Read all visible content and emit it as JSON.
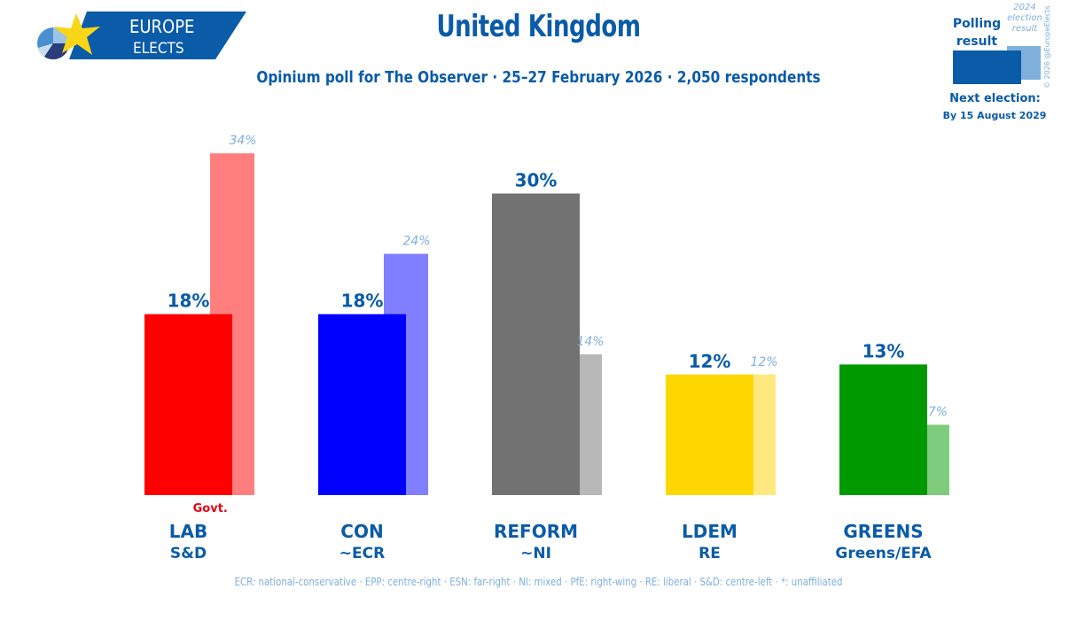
{
  "header": {
    "title": "United Kingdom",
    "subtitle": "Opinium poll for The Observer · 25–27 February 2026 · 2,050 respondents"
  },
  "logo": {
    "line1": "EUROPE",
    "line2": "ELECTS",
    "brand_color": "#0a5ba8",
    "star_color": "#f9d616"
  },
  "legend": {
    "polling_label_1": "Polling",
    "polling_label_2": "result",
    "previous_label_1": "2024",
    "previous_label_2": "election",
    "previous_label_3": "result",
    "copyright": "© 2026 @EuropeElects",
    "next_election_label": "Next election:",
    "next_election_date": "By 15 August 2029"
  },
  "footnote": "ECR: national-conservative · EPP: centre-right · ESN: far-right · NI: mixed · PfE: right-wing · RE: liberal · S&D: centre-left · *: unaffiliated",
  "chart_data": {
    "type": "bar",
    "title": "United Kingdom",
    "subtitle": "Opinium poll for The Observer · 25–27 February 2026 · 2,050 respondents",
    "xlabel": "",
    "ylabel": "",
    "ylim": [
      0,
      35
    ],
    "grid": false,
    "legend_position": "top-right",
    "categories": [
      "LAB",
      "CON",
      "REFORM",
      "LDEM",
      "GREENS"
    ],
    "groups": [
      "S&D",
      "~ECR",
      "~NI",
      "RE",
      "Greens/EFA"
    ],
    "annotations": [
      {
        "category": "LAB",
        "text": "Govt."
      }
    ],
    "series": [
      {
        "name": "Polling result",
        "values": [
          18,
          18,
          30,
          12,
          13
        ],
        "labels": [
          "18%",
          "18%",
          "30%",
          "12%",
          "13%"
        ],
        "colors": [
          "#ff0000",
          "#0000ff",
          "#727272",
          "#ffd700",
          "#009900"
        ]
      },
      {
        "name": "2024 election result",
        "values": [
          34,
          24,
          14,
          12,
          7
        ],
        "labels": [
          "34%",
          "24%",
          "14%",
          "12%",
          "7%"
        ],
        "colors": [
          "#ff7f7f",
          "#7f7fff",
          "#b8b8b8",
          "#ffe97f",
          "#7fcc7f"
        ]
      }
    ]
  }
}
